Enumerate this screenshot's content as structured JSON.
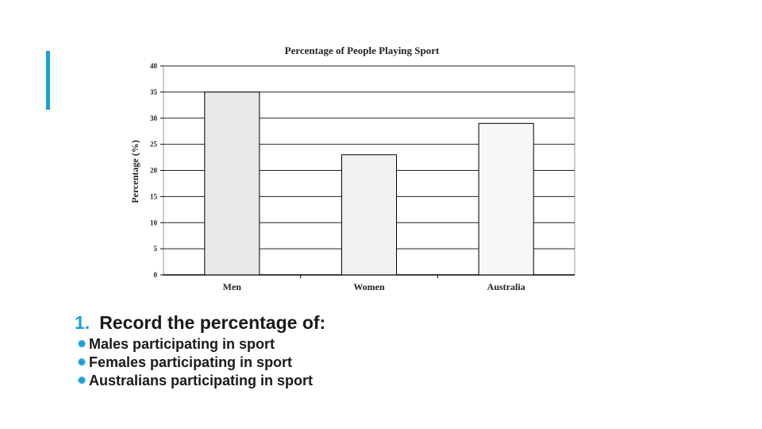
{
  "slide": {
    "accent_color": "#1aa1dc",
    "heading_number": "1.",
    "heading_text": "Record the percentage of:",
    "bullets": [
      "Males participating in sport",
      "Females participating in sport",
      "Australians participating in sport"
    ],
    "bullet_icon": "asterisk-icon"
  },
  "chart_data": {
    "type": "bar",
    "title": "Percentage of People Playing Sport",
    "xlabel": "",
    "ylabel": "Percentage (%)",
    "categories": [
      "Men",
      "Women",
      "Australia"
    ],
    "values": [
      35,
      23,
      29
    ],
    "ylim": [
      0,
      40
    ],
    "yticks": [
      0,
      5,
      10,
      15,
      20,
      25,
      30,
      35,
      40
    ],
    "grid": true,
    "bar_colors": [
      "#e8e8e8",
      "#f2f2f2",
      "#f7f7f7"
    ]
  }
}
